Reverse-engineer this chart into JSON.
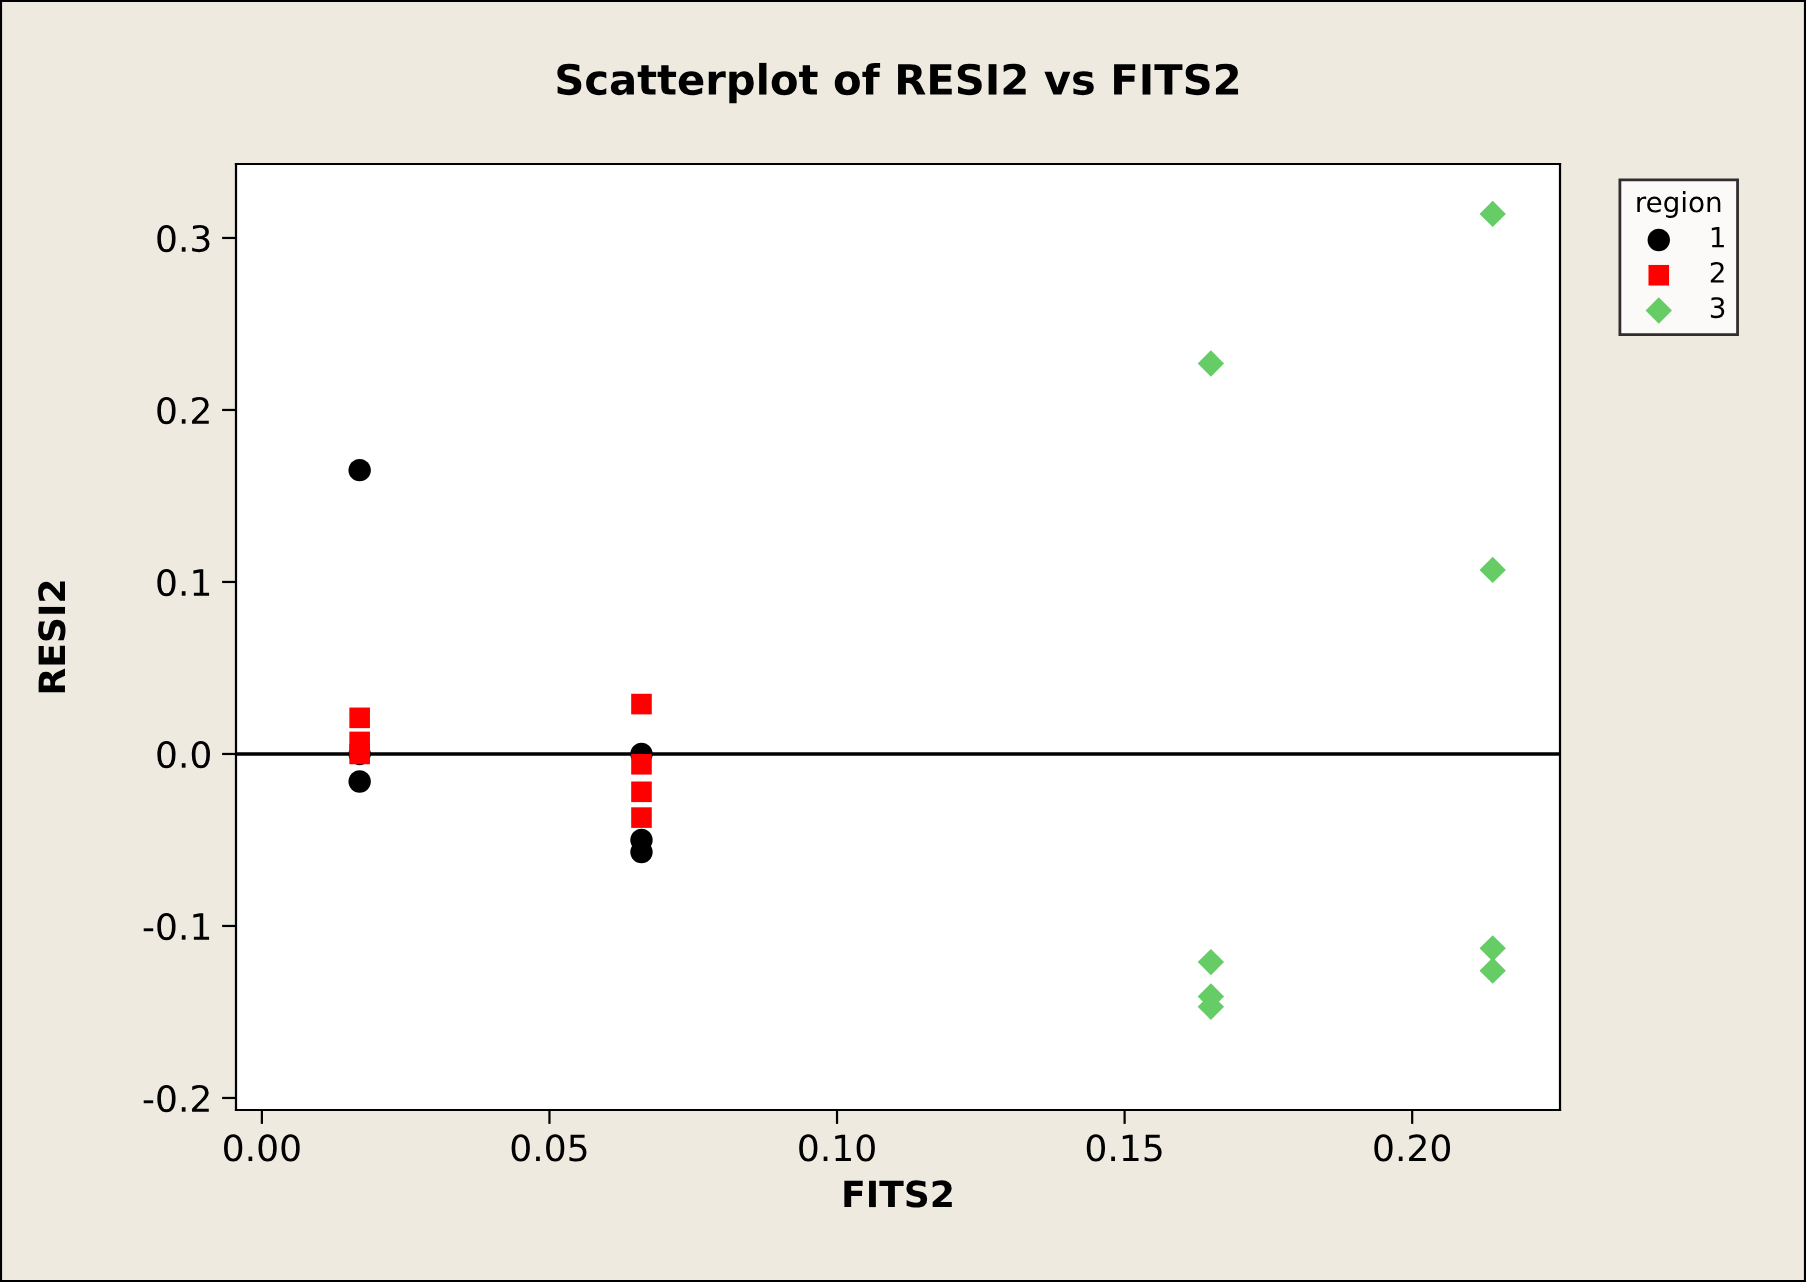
{
  "chart_data": {
    "type": "scatter",
    "title": "Scatterplot of RESI2 vs FITS2",
    "xlabel": "FITS2",
    "ylabel": "RESI2",
    "legend_title": "region",
    "legend": "top right",
    "xlim": [
      -0.0045,
      0.2257
    ],
    "xticks": [
      {
        "value": 0,
        "label": "0.00"
      },
      {
        "value": 0.05,
        "label": "0.05"
      },
      {
        "value": 0.1,
        "label": "0.10"
      },
      {
        "value": 0.15,
        "label": "0.15"
      },
      {
        "value": 0.2,
        "label": "0.20"
      }
    ],
    "ylim": [
      -0.207,
      0.343
    ],
    "yticks": [
      {
        "value": -0.2,
        "label": "-0.2"
      },
      {
        "value": -0.1,
        "label": "-0.1"
      },
      {
        "value": 0,
        "label": "0.0"
      },
      {
        "value": 0.1,
        "label": "0.1"
      },
      {
        "value": 0.2,
        "label": "0.2"
      },
      {
        "value": 0.3,
        "label": "0.3"
      }
    ],
    "grid": false,
    "ref_lines": [
      {
        "axis": "y",
        "value": 0,
        "color": "#000000"
      }
    ],
    "series": [
      {
        "name": "1",
        "color": "#000000",
        "marker": "circle",
        "x": [
          0.017,
          0.017,
          0.017,
          0.066,
          0.066,
          0.066
        ],
        "values": [
          0.165,
          0.0,
          -0.016,
          0.0,
          -0.05,
          -0.057
        ]
      },
      {
        "name": "2",
        "color": "#ff0000",
        "marker": "square",
        "x": [
          0.017,
          0.017,
          0.017,
          0.066,
          0.066,
          0.066,
          0.066
        ],
        "values": [
          0.021,
          0.007,
          0.0,
          0.029,
          -0.006,
          -0.022,
          -0.037
        ]
      },
      {
        "name": "3",
        "color": "#66cc66",
        "marker": "diamond",
        "x": [
          0.165,
          0.165,
          0.165,
          0.165,
          0.214,
          0.214,
          0.214,
          0.214
        ],
        "values": [
          0.227,
          -0.121,
          -0.141,
          -0.147,
          0.314,
          0.107,
          -0.113,
          -0.126
        ]
      }
    ]
  }
}
